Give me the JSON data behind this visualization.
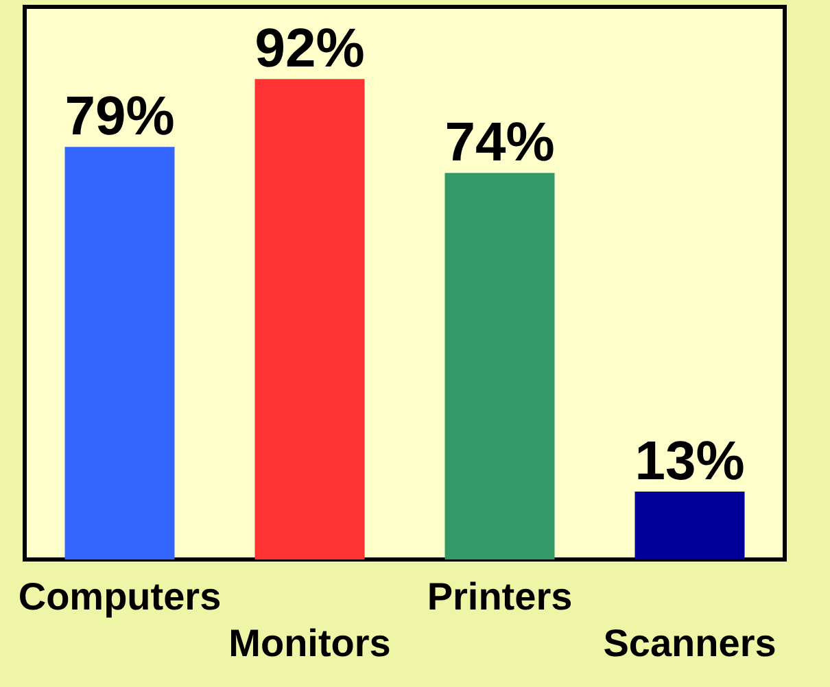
{
  "chart_data": {
    "type": "bar",
    "categories": [
      "Computers",
      "Monitors",
      "Printers",
      "Scanners"
    ],
    "values": [
      79,
      92,
      74,
      13
    ],
    "colors": [
      "#3366ff",
      "#ff3333",
      "#339966",
      "#000099"
    ],
    "value_labels": [
      "79%",
      "92%",
      "74%",
      "13%"
    ]
  }
}
